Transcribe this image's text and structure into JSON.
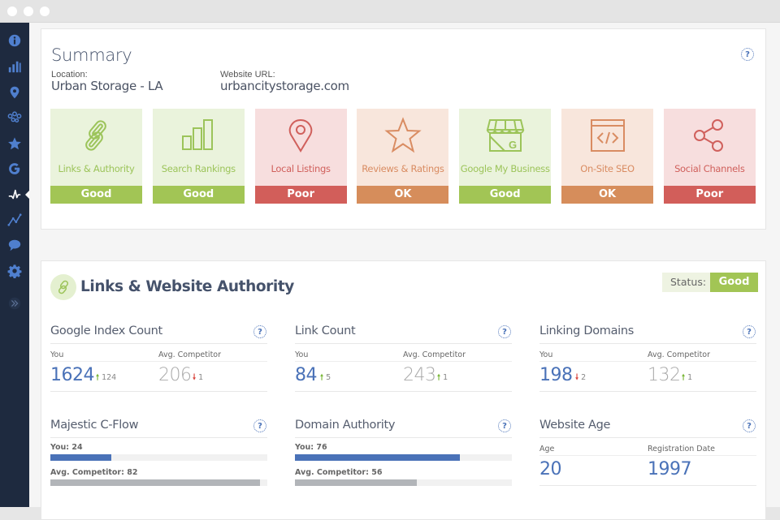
{
  "window": {
    "controls": [
      "close",
      "minimize",
      "maximize"
    ]
  },
  "sidebar": {
    "items": [
      {
        "name": "info",
        "icon": "info-icon"
      },
      {
        "name": "rankings",
        "icon": "bar-chart-icon"
      },
      {
        "name": "local-listings",
        "icon": "map-pin-icon"
      },
      {
        "name": "locations",
        "icon": "multi-pin-icon"
      },
      {
        "name": "reviews",
        "icon": "star-icon"
      },
      {
        "name": "google",
        "icon": "google-icon"
      },
      {
        "name": "activity",
        "icon": "pulse-icon",
        "active": true
      },
      {
        "name": "trends",
        "icon": "trend-line-icon"
      },
      {
        "name": "social",
        "icon": "speech-bubble-icon"
      },
      {
        "name": "settings",
        "icon": "gear-icon"
      },
      {
        "name": "expand",
        "icon": "double-chevron-right-icon"
      }
    ]
  },
  "summary": {
    "title": "Summary",
    "location_label": "Location:",
    "location_value": "Urban Storage - LA",
    "url_label": "Website URL:",
    "url_value": "urbancitystorage.com",
    "help": "?",
    "cards": [
      {
        "label": "Links & Authority",
        "status": "Good",
        "icon": "link-icon",
        "tone": "good"
      },
      {
        "label": "Search Rankings",
        "status": "Good",
        "icon": "bar-chart-icon",
        "tone": "good"
      },
      {
        "label": "Local Listings",
        "status": "Poor",
        "icon": "map-pin-icon",
        "tone": "poor"
      },
      {
        "label": "Reviews & Ratings",
        "status": "OK",
        "icon": "star-icon",
        "tone": "ok"
      },
      {
        "label": "Google My Business",
        "status": "Good",
        "icon": "storefront-icon",
        "tone": "good"
      },
      {
        "label": "On-Site SEO",
        "status": "OK",
        "icon": "code-window-icon",
        "tone": "ok"
      },
      {
        "label": "Social Channels",
        "status": "Poor",
        "icon": "share-icon",
        "tone": "poor"
      }
    ]
  },
  "colors": {
    "good_bg": "#eaf3dc",
    "good_fg": "#9cc45a",
    "good_bar": "#a2c555",
    "poor_bg": "#f7dede",
    "poor_fg": "#d0605c",
    "poor_bar": "#d25e5a",
    "ok_bg": "#f8e6dc",
    "ok_fg": "#d98c62",
    "ok_bar": "#d68d5b",
    "you_blue": "#4a72b8",
    "competitor_gray": "#a9a9a9",
    "up_green": "#7cb83a",
    "down_red": "#d9463f",
    "sidebar_bg": "#1e2a3f",
    "sidebar_icon": "#4f7fce"
  },
  "links": {
    "title": "Links & Website Authority",
    "status_label": "Status:",
    "status_value": "Good",
    "metrics": [
      {
        "title": "Google Index Count",
        "you_label": "You",
        "competitor_label": "Avg. Competitor",
        "you_value": "1624",
        "you_delta": "124",
        "you_dir": "up",
        "competitor_value": "206",
        "competitor_delta": "1",
        "competitor_dir": "down"
      },
      {
        "title": "Link Count",
        "you_label": "You",
        "competitor_label": "Avg. Competitor",
        "you_value": "84",
        "you_delta": "5",
        "you_dir": "up",
        "competitor_value": "243",
        "competitor_delta": "1",
        "competitor_dir": "up"
      },
      {
        "title": "Linking Domains",
        "you_label": "You",
        "competitor_label": "Avg. Competitor",
        "you_value": "198",
        "you_delta": "2",
        "you_dir": "down",
        "competitor_value": "132",
        "competitor_delta": "1",
        "competitor_dir": "up"
      }
    ],
    "bars": [
      {
        "title": "Majestic C-Flow",
        "you_label": "You: 24",
        "you_value": 24,
        "competitor_label": "Avg. Competitor: 82",
        "competitor_value": 82,
        "max": 85
      },
      {
        "title": "Domain Authority",
        "you_label": "You: 76",
        "you_value": 76,
        "competitor_label": "Avg. Competitor: 56",
        "competitor_value": 56,
        "max": 100
      }
    ],
    "age": {
      "title": "Website Age",
      "age_label": "Age",
      "age_value": "20",
      "reg_label": "Registration Date",
      "reg_value": "1997"
    }
  }
}
